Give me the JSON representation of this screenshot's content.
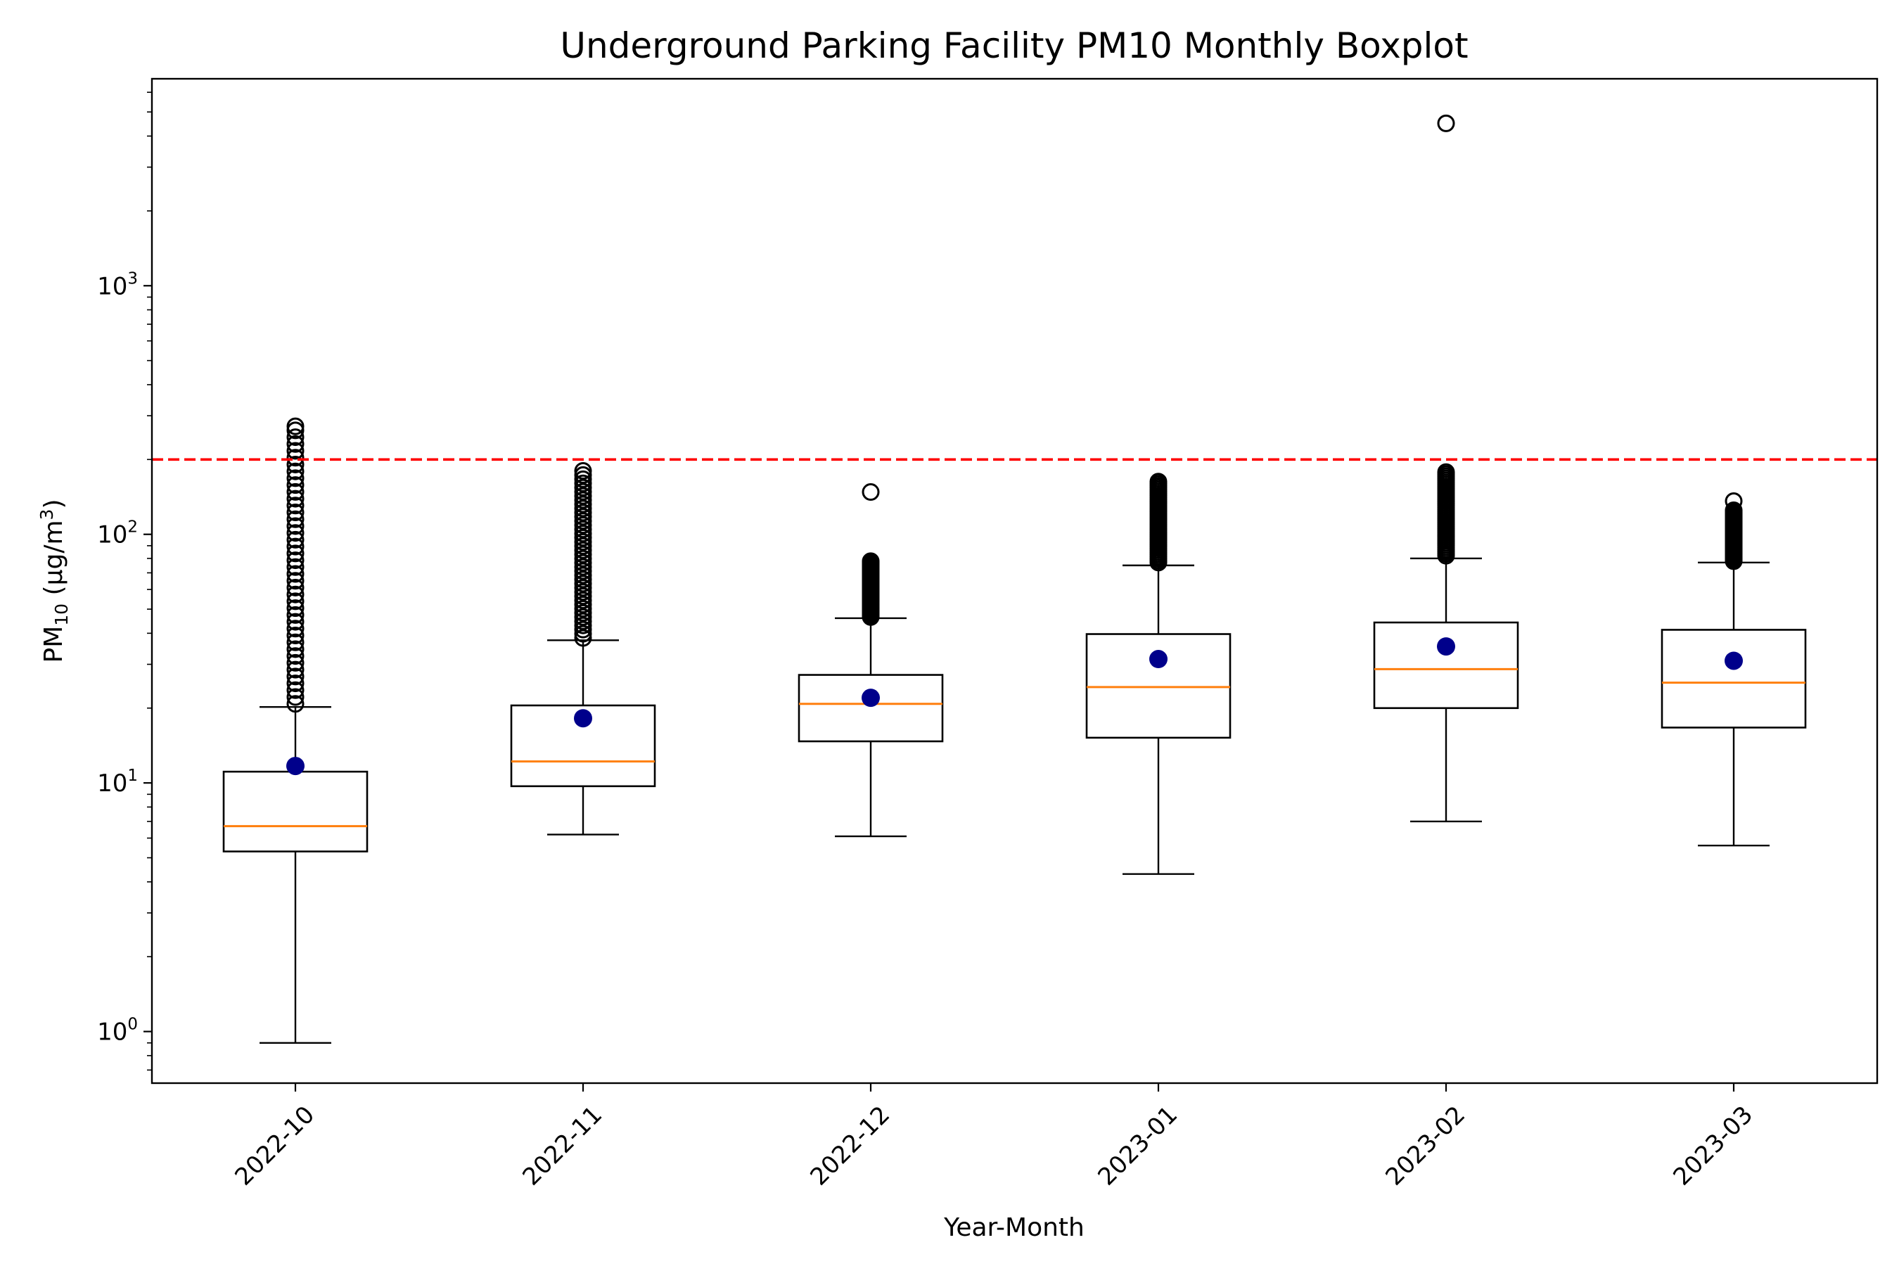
{
  "chart_data": {
    "type": "boxplot",
    "title": "Underground Parking Facility PM10 Monthly Boxplot",
    "xlabel": "Year-Month",
    "ylabel": {
      "base": "PM",
      "sub": "10",
      "unit_prefix": " (μg/m",
      "unit_sup": "3",
      "unit_suffix": ")"
    },
    "yscale": "log",
    "ylim": [
      0.62,
      6800
    ],
    "yticks": [
      {
        "value": 1,
        "base": "10",
        "exp": "0"
      },
      {
        "value": 10,
        "base": "10",
        "exp": "1"
      },
      {
        "value": 100,
        "base": "10",
        "exp": "2"
      },
      {
        "value": 1000,
        "base": "10",
        "exp": "3"
      }
    ],
    "categories": [
      "2022-10",
      "2022-11",
      "2022-12",
      "2023-01",
      "2023-02",
      "2023-03"
    ],
    "boxes": [
      {
        "whisker_low": 0.9,
        "q1": 5.3,
        "median": 6.7,
        "q3": 11.1,
        "whisker_high": 20.2,
        "mean": 11.7,
        "outliers": {
          "dense_from": 20.8,
          "dense_to": 262,
          "extra": [
            272
          ]
        }
      },
      {
        "whisker_low": 6.2,
        "q1": 9.7,
        "median": 12.2,
        "q3": 20.5,
        "whisker_high": 37.5,
        "mean": 18.2,
        "outliers": {
          "dense_from": 38.3,
          "dense_to": 180,
          "extra": []
        }
      },
      {
        "whisker_low": 6.1,
        "q1": 14.7,
        "median": 20.8,
        "q3": 27.2,
        "whisker_high": 46,
        "mean": 22,
        "outliers": {
          "dense_from": 46.5,
          "dense_to": 78,
          "extra": [
            148
          ]
        }
      },
      {
        "whisker_low": 4.3,
        "q1": 15.2,
        "median": 24.3,
        "q3": 39.7,
        "whisker_high": 75,
        "mean": 31.5,
        "outliers": {
          "dense_from": 77,
          "dense_to": 163,
          "extra": []
        }
      },
      {
        "whisker_low": 7,
        "q1": 20,
        "median": 28.7,
        "q3": 44.2,
        "whisker_high": 80,
        "mean": 35.4,
        "outliers": {
          "dense_from": 82,
          "dense_to": 178,
          "extra": [
            4500
          ]
        }
      },
      {
        "whisker_low": 5.6,
        "q1": 16.7,
        "median": 25.3,
        "q3": 41.3,
        "whisker_high": 77,
        "mean": 31,
        "outliers": {
          "dense_from": 78,
          "dense_to": 125,
          "extra": [
            136
          ]
        }
      }
    ],
    "reference_line": {
      "value": 200,
      "style": "dashed"
    },
    "grid": false,
    "legend": "none",
    "colors": {
      "box": "#000000",
      "median": "#ff7f0e",
      "mean": "#00008b",
      "reference_line": "#ff0000",
      "outlier_edge": "#000000"
    }
  }
}
